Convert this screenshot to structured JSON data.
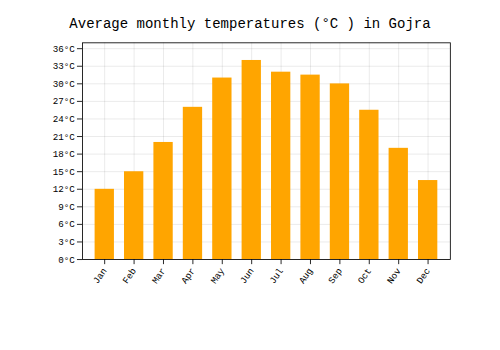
{
  "chart_data": {
    "type": "bar",
    "title": "Average monthly temperatures (°C ) in Gojra",
    "categories": [
      "Jan",
      "Feb",
      "Mar",
      "Apr",
      "May",
      "Jun",
      "Jul",
      "Aug",
      "Sep",
      "Oct",
      "Nov",
      "Dec"
    ],
    "values": [
      12,
      15,
      20,
      26,
      31,
      34,
      32,
      31.5,
      30,
      25.5,
      19,
      13.5
    ],
    "color": "#FFA500",
    "ylim": [
      0,
      37
    ],
    "yticks": [
      {
        "value": 0,
        "label": "0°C"
      },
      {
        "value": 3,
        "label": "3°C"
      },
      {
        "value": 6,
        "label": "6°C"
      },
      {
        "value": 9,
        "label": "9°C"
      },
      {
        "value": 12,
        "label": "12°C"
      },
      {
        "value": 15,
        "label": "15°C"
      },
      {
        "value": 18,
        "label": "18°C"
      },
      {
        "value": 21,
        "label": "21°C"
      },
      {
        "value": 24,
        "label": "24°C"
      },
      {
        "value": 27,
        "label": "27°C"
      },
      {
        "value": 30,
        "label": "30°C"
      },
      {
        "value": 33,
        "label": "33°C"
      },
      {
        "value": 36,
        "label": "36°C"
      }
    ],
    "grid": true
  }
}
